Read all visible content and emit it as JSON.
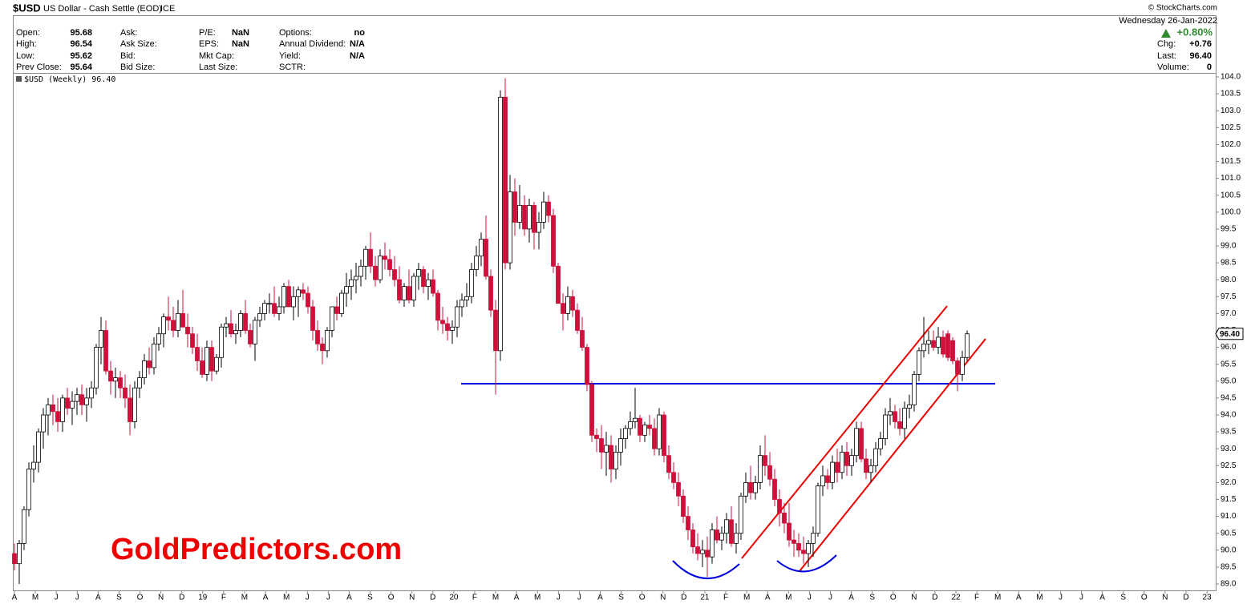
{
  "chart_data": {
    "type": "candlestick",
    "header": {
      "symbol": "$USD",
      "name": "US Dollar - Cash Settle (EOD)",
      "exchange": "ICE",
      "credit": "© StockCharts.com"
    },
    "quote_columns": [
      [
        {
          "label": "Open:",
          "value": "95.68"
        },
        {
          "label": "High:",
          "value": "96.54"
        },
        {
          "label": "Low:",
          "value": "95.62"
        },
        {
          "label": "Prev Close:",
          "value": "95.64"
        }
      ],
      [
        {
          "label": "Ask:"
        },
        {
          "label": "Ask Size:"
        },
        {
          "label": "Bid:"
        },
        {
          "label": "Bid Size:"
        }
      ],
      [
        {
          "label": "P/E:",
          "value": "NaN"
        },
        {
          "label": "EPS:",
          "value": "NaN"
        },
        {
          "label": "Mkt Cap:"
        },
        {
          "label": "Last Size:"
        }
      ],
      [
        {
          "label": "Options:",
          "value": "no"
        },
        {
          "label": "Annual Dividend:",
          "value": "N/A"
        },
        {
          "label": "Yield:",
          "value": "N/A"
        },
        {
          "label": "SCTR:"
        }
      ]
    ],
    "date": "Wednesday  26-Jan-2022",
    "change_pct": "+0.80%",
    "summary": [
      {
        "label": "Chg:",
        "value": "+0.76"
      },
      {
        "label": "Last:",
        "value": "96.40"
      },
      {
        "label": "Volume:",
        "value": "0"
      }
    ],
    "legend": "$USD (Weekly) 96.40",
    "watermark": "GoldPredictors.com",
    "up_color": "#ffffff",
    "down_color": "#d0103a",
    "last": {
      "value": 96.4,
      "label": "96.40"
    },
    "ylim": [
      89,
      104
    ],
    "yticks": [
      {
        "value": 89,
        "label": "89.0"
      },
      {
        "value": 89.5,
        "label": "89.5"
      },
      {
        "value": 90,
        "label": "90.0"
      },
      {
        "value": 90.5,
        "label": "90.5"
      },
      {
        "value": 91,
        "label": "91.0"
      },
      {
        "value": 91.5,
        "label": "91.5"
      },
      {
        "value": 92,
        "label": "92.0"
      },
      {
        "value": 92.5,
        "label": "92.5"
      },
      {
        "value": 93,
        "label": "93.0"
      },
      {
        "value": 93.5,
        "label": "93.5"
      },
      {
        "value": 94,
        "label": "94.0"
      },
      {
        "value": 94.5,
        "label": "94.5"
      },
      {
        "value": 95,
        "label": "95.0"
      },
      {
        "value": 95.5,
        "label": "95.5"
      },
      {
        "value": 96,
        "label": "96.0"
      },
      {
        "value": 96.5,
        "label": "96.5"
      },
      {
        "value": 97,
        "label": "97.0"
      },
      {
        "value": 97.5,
        "label": "97.5"
      },
      {
        "value": 98,
        "label": "98.0"
      },
      {
        "value": 98.5,
        "label": "98.5"
      },
      {
        "value": 99,
        "label": "99.0"
      },
      {
        "value": 99.5,
        "label": "99.5"
      },
      {
        "value": 100,
        "label": "100.0"
      },
      {
        "value": 100.5,
        "label": "100.5"
      },
      {
        "value": 101,
        "label": "101.0"
      },
      {
        "value": 101.5,
        "label": "101.5"
      },
      {
        "value": 102,
        "label": "102.0"
      },
      {
        "value": 102.5,
        "label": "102.5"
      },
      {
        "value": 103,
        "label": "103.0"
      },
      {
        "value": 103.5,
        "label": "103.5"
      },
      {
        "value": 104,
        "label": "104.0"
      }
    ],
    "month_labels": [
      "A",
      "M",
      "J",
      "J",
      "A",
      "S",
      "O",
      "N",
      "D",
      "19",
      "F",
      "M",
      "A",
      "M",
      "J",
      "J",
      "A",
      "S",
      "O",
      "N",
      "D",
      "20",
      "F",
      "M",
      "A",
      "M",
      "J",
      "J",
      "A",
      "S",
      "O",
      "N",
      "D",
      "21",
      "F",
      "M",
      "A",
      "M",
      "J",
      "J",
      "A",
      "S",
      "O",
      "N",
      "D",
      "22",
      "F",
      "M",
      "A",
      "M",
      "J",
      "J",
      "A",
      "S",
      "O",
      "N",
      "D",
      "23"
    ],
    "ohlc": [
      [
        89.9,
        90.2,
        89.4,
        89.6
      ],
      [
        89.6,
        90.3,
        89.0,
        90.2
      ],
      [
        90.2,
        91.3,
        90.0,
        91.2
      ],
      [
        91.2,
        92.6,
        91.0,
        92.4
      ],
      [
        92.4,
        93.1,
        92.0,
        92.6
      ],
      [
        92.6,
        93.6,
        92.3,
        93.5
      ],
      [
        93.5,
        94.2,
        93.0,
        94.0
      ],
      [
        94.0,
        94.5,
        93.4,
        94.3
      ],
      [
        94.3,
        94.6,
        93.7,
        94.1
      ],
      [
        94.1,
        94.5,
        93.5,
        93.8
      ],
      [
        93.8,
        94.6,
        93.5,
        94.5
      ],
      [
        94.5,
        94.8,
        94.0,
        94.2
      ],
      [
        94.2,
        94.7,
        93.7,
        94.4
      ],
      [
        94.4,
        94.8,
        94.0,
        94.6
      ],
      [
        94.6,
        94.9,
        94.0,
        94.3
      ],
      [
        94.3,
        94.8,
        93.8,
        94.5
      ],
      [
        94.5,
        95.0,
        94.2,
        94.8
      ],
      [
        94.8,
        96.1,
        94.6,
        96.0
      ],
      [
        96.0,
        96.9,
        95.5,
        96.5
      ],
      [
        96.5,
        96.8,
        95.2,
        95.3
      ],
      [
        95.3,
        95.6,
        94.6,
        95.0
      ],
      [
        95.0,
        95.4,
        94.5,
        95.1
      ],
      [
        95.1,
        95.3,
        94.5,
        94.8
      ],
      [
        94.8,
        95.2,
        94.2,
        94.5
      ],
      [
        94.5,
        94.9,
        93.4,
        93.8
      ],
      [
        93.8,
        95.0,
        93.6,
        94.8
      ],
      [
        94.8,
        95.3,
        94.5,
        95.1
      ],
      [
        95.1,
        95.8,
        94.9,
        95.6
      ],
      [
        95.6,
        96.0,
        95.2,
        95.4
      ],
      [
        95.4,
        96.3,
        95.2,
        96.1
      ],
      [
        96.1,
        96.6,
        95.9,
        96.4
      ],
      [
        96.4,
        97.0,
        96.0,
        96.9
      ],
      [
        96.9,
        97.5,
        96.5,
        96.8
      ],
      [
        96.8,
        97.2,
        96.3,
        96.5
      ],
      [
        96.5,
        97.4,
        96.3,
        97.0
      ],
      [
        97.0,
        97.7,
        96.6,
        96.6
      ],
      [
        96.6,
        97.0,
        96.0,
        96.4
      ],
      [
        96.4,
        96.6,
        95.8,
        96.0
      ],
      [
        96.0,
        96.4,
        95.3,
        95.6
      ],
      [
        95.6,
        96.0,
        95.1,
        95.2
      ],
      [
        95.2,
        96.2,
        95.0,
        96.0
      ],
      [
        96.0,
        96.2,
        95.0,
        95.3
      ],
      [
        95.3,
        95.8,
        95.2,
        95.7
      ],
      [
        95.7,
        96.7,
        95.4,
        96.6
      ],
      [
        96.6,
        96.9,
        96.3,
        96.7
      ],
      [
        96.7,
        97.1,
        96.3,
        96.4
      ],
      [
        96.4,
        96.7,
        96.1,
        96.5
      ],
      [
        96.5,
        97.1,
        96.3,
        97.0
      ],
      [
        97.0,
        97.4,
        96.4,
        96.5
      ],
      [
        96.5,
        96.7,
        96.0,
        96.1
      ],
      [
        96.1,
        96.9,
        95.6,
        96.8
      ],
      [
        96.8,
        97.2,
        96.6,
        97.0
      ],
      [
        97.0,
        97.4,
        96.8,
        97.3
      ],
      [
        97.3,
        97.6,
        97.0,
        97.3
      ],
      [
        97.3,
        97.8,
        96.9,
        97.0
      ],
      [
        97.0,
        97.5,
        96.8,
        97.2
      ],
      [
        97.2,
        97.9,
        97.0,
        97.8
      ],
      [
        97.8,
        98.0,
        97.2,
        97.2
      ],
      [
        97.2,
        97.8,
        96.8,
        97.5
      ],
      [
        97.5,
        97.8,
        96.9,
        97.7
      ],
      [
        97.7,
        97.9,
        97.4,
        97.6
      ],
      [
        97.6,
        97.8,
        97.0,
        97.2
      ],
      [
        97.2,
        97.4,
        96.2,
        96.5
      ],
      [
        96.5,
        96.8,
        95.9,
        96.1
      ],
      [
        96.1,
        96.3,
        95.5,
        95.9
      ],
      [
        95.9,
        96.6,
        95.7,
        96.5
      ],
      [
        96.5,
        97.2,
        96.3,
        97.2
      ],
      [
        97.2,
        97.5,
        96.8,
        97.0
      ],
      [
        97.0,
        97.7,
        96.9,
        97.6
      ],
      [
        97.6,
        98.2,
        97.2,
        97.8
      ],
      [
        97.8,
        98.3,
        97.4,
        98.0
      ],
      [
        98.0,
        98.5,
        97.6,
        98.1
      ],
      [
        98.1,
        98.6,
        97.8,
        98.4
      ],
      [
        98.4,
        99.0,
        98.0,
        98.9
      ],
      [
        98.9,
        99.4,
        98.2,
        98.4
      ],
      [
        98.4,
        98.7,
        97.8,
        98.0
      ],
      [
        98.0,
        98.9,
        97.9,
        98.7
      ],
      [
        98.7,
        99.1,
        98.3,
        98.6
      ],
      [
        98.6,
        98.9,
        98.1,
        98.3
      ],
      [
        98.3,
        98.7,
        97.8,
        98.0
      ],
      [
        98.0,
        98.4,
        97.3,
        97.4
      ],
      [
        97.4,
        97.9,
        97.2,
        97.8
      ],
      [
        97.8,
        98.3,
        97.3,
        97.4
      ],
      [
        97.4,
        98.2,
        97.2,
        98.1
      ],
      [
        98.1,
        98.5,
        97.7,
        98.3
      ],
      [
        98.3,
        98.4,
        97.6,
        97.8
      ],
      [
        97.8,
        98.2,
        97.4,
        98.0
      ],
      [
        98.0,
        98.3,
        97.5,
        97.6
      ],
      [
        97.6,
        97.7,
        96.5,
        96.8
      ],
      [
        96.8,
        97.2,
        96.4,
        96.7
      ],
      [
        96.7,
        96.9,
        96.2,
        96.5
      ],
      [
        96.5,
        96.8,
        96.1,
        96.6
      ],
      [
        96.6,
        97.4,
        96.3,
        97.2
      ],
      [
        97.2,
        97.6,
        96.9,
        97.4
      ],
      [
        97.4,
        97.9,
        97.2,
        97.5
      ],
      [
        97.5,
        98.5,
        97.3,
        98.3
      ],
      [
        98.3,
        99.0,
        98.1,
        98.7
      ],
      [
        98.7,
        99.4,
        98.4,
        99.2
      ],
      [
        99.2,
        99.9,
        98.0,
        98.1
      ],
      [
        98.1,
        98.3,
        96.9,
        97.1
      ],
      [
        97.1,
        97.4,
        94.6,
        95.9
      ],
      [
        95.9,
        103.6,
        95.6,
        103.4
      ],
      [
        103.4,
        103.96,
        98.3,
        98.5
      ],
      [
        98.5,
        101.1,
        98.3,
        100.6
      ],
      [
        100.6,
        101.0,
        99.3,
        99.7
      ],
      [
        99.7,
        100.8,
        99.5,
        100.2
      ],
      [
        100.2,
        100.5,
        99.3,
        99.5
      ],
      [
        99.5,
        100.4,
        99.1,
        100.2
      ],
      [
        100.2,
        100.3,
        98.9,
        99.4
      ],
      [
        99.4,
        100.0,
        98.9,
        99.7
      ],
      [
        99.7,
        100.6,
        99.5,
        100.3
      ],
      [
        100.3,
        100.5,
        99.7,
        99.9
      ],
      [
        99.9,
        100.1,
        98.2,
        98.4
      ],
      [
        98.4,
        98.5,
        97.3,
        97.3
      ],
      [
        97.3,
        97.6,
        96.5,
        97.0
      ],
      [
        97.0,
        97.8,
        96.8,
        97.5
      ],
      [
        97.5,
        97.7,
        96.9,
        97.1
      ],
      [
        97.1,
        97.3,
        96.4,
        96.5
      ],
      [
        96.5,
        96.9,
        95.9,
        96.0
      ],
      [
        96.0,
        96.1,
        94.7,
        94.9
      ],
      [
        94.9,
        95.0,
        93.2,
        93.4
      ],
      [
        93.4,
        93.6,
        92.9,
        93.3
      ],
      [
        93.3,
        93.7,
        92.4,
        92.9
      ],
      [
        92.9,
        93.5,
        92.2,
        93.1
      ],
      [
        93.1,
        93.4,
        92.0,
        92.4
      ],
      [
        92.4,
        93.1,
        92.1,
        92.9
      ],
      [
        92.9,
        93.6,
        92.5,
        93.3
      ],
      [
        93.3,
        93.7,
        93.0,
        93.6
      ],
      [
        93.6,
        94.1,
        93.4,
        93.8
      ],
      [
        93.8,
        94.8,
        93.6,
        93.9
      ],
      [
        93.9,
        94.0,
        93.2,
        93.4
      ],
      [
        93.4,
        93.8,
        93.2,
        93.7
      ],
      [
        93.7,
        94.0,
        93.4,
        93.6
      ],
      [
        93.6,
        93.9,
        92.8,
        93.0
      ],
      [
        93.0,
        94.2,
        92.8,
        94.0
      ],
      [
        94.0,
        94.1,
        92.6,
        92.8
      ],
      [
        92.8,
        93.1,
        92.1,
        92.3
      ],
      [
        92.3,
        92.6,
        91.8,
        92.0
      ],
      [
        92.0,
        92.3,
        91.3,
        91.6
      ],
      [
        91.6,
        91.8,
        90.8,
        91.0
      ],
      [
        91.0,
        91.3,
        90.3,
        90.6
      ],
      [
        90.6,
        90.8,
        89.9,
        90.1
      ],
      [
        90.1,
        90.5,
        89.7,
        89.9
      ],
      [
        89.9,
        90.3,
        89.5,
        90.0
      ],
      [
        90.0,
        90.4,
        89.2,
        89.8
      ],
      [
        89.8,
        90.8,
        89.6,
        90.6
      ],
      [
        90.6,
        91.0,
        90.2,
        90.3
      ],
      [
        90.3,
        90.7,
        90.0,
        90.5
      ],
      [
        90.5,
        91.1,
        90.2,
        90.9
      ],
      [
        90.9,
        91.3,
        90.1,
        90.2
      ],
      [
        90.2,
        90.8,
        89.9,
        90.5
      ],
      [
        90.5,
        91.7,
        90.3,
        91.6
      ],
      [
        91.6,
        92.3,
        91.4,
        92.0
      ],
      [
        92.0,
        92.5,
        91.5,
        91.7
      ],
      [
        91.7,
        92.2,
        91.5,
        92.0
      ],
      [
        92.0,
        93.1,
        91.8,
        92.8
      ],
      [
        92.8,
        93.4,
        92.2,
        92.5
      ],
      [
        92.5,
        92.9,
        91.9,
        92.1
      ],
      [
        92.1,
        92.4,
        91.3,
        91.5
      ],
      [
        91.5,
        91.8,
        90.7,
        91.1
      ],
      [
        91.1,
        91.4,
        90.5,
        90.8
      ],
      [
        90.8,
        91.4,
        90.1,
        90.3
      ],
      [
        90.3,
        90.6,
        89.8,
        90.2
      ],
      [
        90.2,
        90.5,
        89.8,
        90.0
      ],
      [
        90.0,
        90.4,
        89.6,
        89.9
      ],
      [
        89.9,
        90.3,
        89.5,
        90.2
      ],
      [
        90.2,
        90.7,
        89.8,
        90.5
      ],
      [
        90.5,
        92.0,
        90.4,
        91.9
      ],
      [
        91.9,
        92.5,
        91.6,
        92.2
      ],
      [
        92.2,
        92.4,
        91.8,
        92.0
      ],
      [
        92.0,
        92.8,
        91.8,
        92.6
      ],
      [
        92.6,
        93.0,
        92.0,
        92.3
      ],
      [
        92.3,
        93.1,
        92.1,
        92.9
      ],
      [
        92.9,
        93.2,
        92.2,
        92.5
      ],
      [
        92.5,
        93.0,
        92.2,
        92.8
      ],
      [
        92.8,
        93.8,
        92.6,
        93.6
      ],
      [
        93.6,
        93.8,
        92.6,
        92.7
      ],
      [
        92.7,
        93.0,
        92.1,
        92.3
      ],
      [
        92.3,
        92.7,
        92.0,
        92.5
      ],
      [
        92.5,
        93.2,
        92.3,
        93.0
      ],
      [
        93.0,
        93.5,
        92.8,
        93.3
      ],
      [
        93.3,
        94.2,
        93.1,
        94.0
      ],
      [
        94.0,
        94.5,
        93.7,
        94.1
      ],
      [
        94.1,
        94.3,
        93.6,
        93.8
      ],
      [
        93.8,
        94.2,
        93.4,
        93.6
      ],
      [
        93.6,
        94.4,
        93.3,
        94.2
      ],
      [
        94.2,
        94.6,
        93.9,
        94.3
      ],
      [
        94.3,
        95.3,
        94.1,
        95.2
      ],
      [
        95.2,
        96.0,
        95.0,
        95.9
      ],
      [
        95.9,
        96.9,
        95.7,
        96.1
      ],
      [
        96.1,
        96.5,
        95.8,
        96.2
      ],
      [
        96.2,
        96.5,
        95.9,
        96.0
      ],
      [
        96.0,
        96.6,
        95.8,
        96.3
      ],
      [
        96.3,
        96.5,
        95.7,
        95.8
      ],
      [
        96.4,
        96.5,
        95.6,
        95.7
      ],
      [
        96.2,
        96.3,
        95.5,
        95.6
      ],
      [
        95.6,
        95.7,
        94.7,
        95.2
      ],
      [
        95.2,
        95.9,
        95.0,
        95.7
      ],
      [
        95.7,
        96.5,
        95.6,
        96.4
      ]
    ]
  }
}
